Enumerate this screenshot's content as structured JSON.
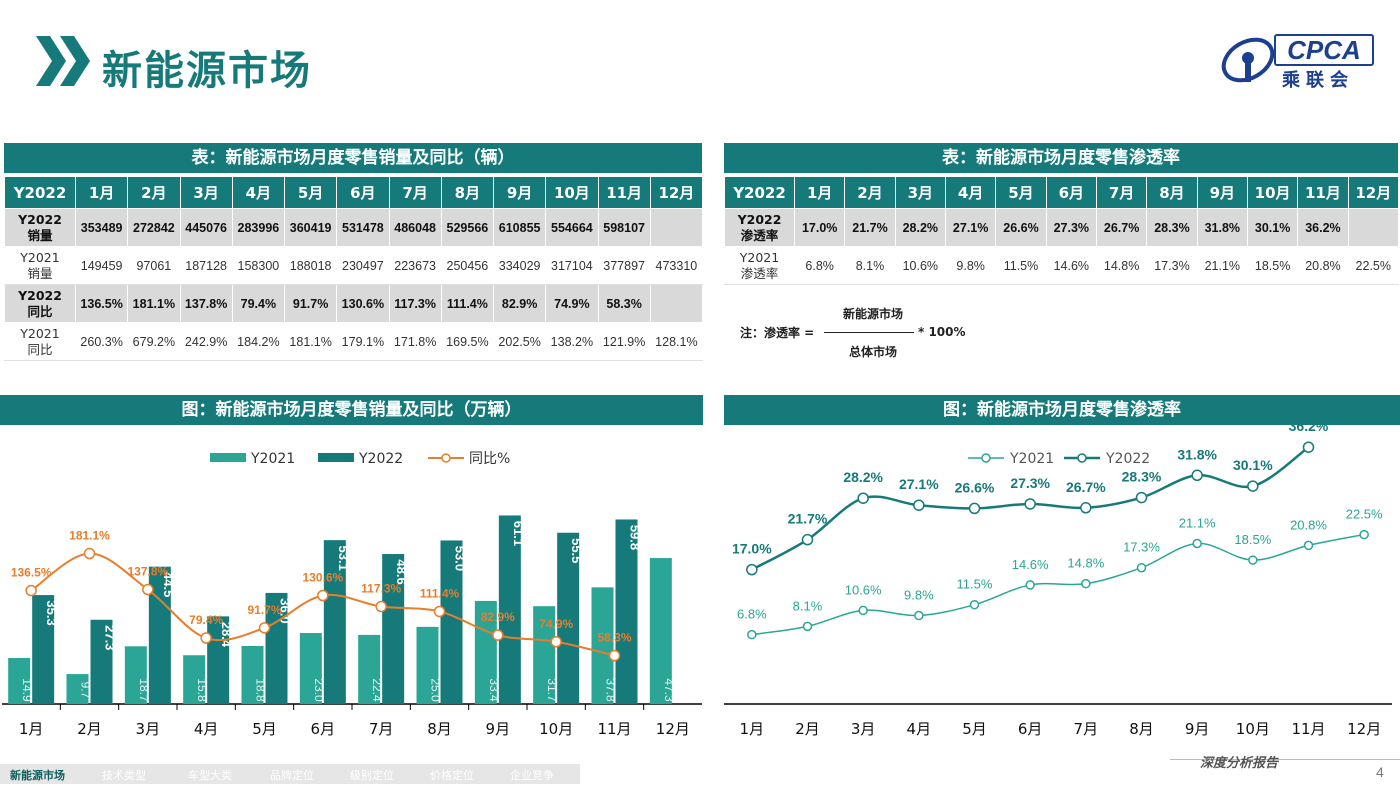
{
  "page_title": "新能源市场",
  "logo": {
    "text": "CPCA",
    "sub": "乘联会"
  },
  "table1": {
    "title": "表：新能源市场月度零售销量及同比（辆）",
    "year_label": "Y2022",
    "months": [
      "1月",
      "2月",
      "3月",
      "4月",
      "5月",
      "6月",
      "7月",
      "8月",
      "9月",
      "10月",
      "11月",
      "12月"
    ],
    "rows": [
      {
        "label_1": "Y2022",
        "label_2": "销量",
        "values": [
          "353489",
          "272842",
          "445076",
          "283996",
          "360419",
          "531478",
          "486048",
          "529566",
          "610855",
          "554664",
          "598107",
          ""
        ]
      },
      {
        "label_1": "Y2021",
        "label_2": "销量",
        "values": [
          "149459",
          "97061",
          "187128",
          "158300",
          "188018",
          "230497",
          "223673",
          "250456",
          "334029",
          "317104",
          "377897",
          "473310"
        ]
      },
      {
        "label_1": "Y2022",
        "label_2": "同比",
        "values": [
          "136.5%",
          "181.1%",
          "137.8%",
          "79.4%",
          "91.7%",
          "130.6%",
          "117.3%",
          "111.4%",
          "82.9%",
          "74.9%",
          "58.3%",
          ""
        ]
      },
      {
        "label_1": "Y2021",
        "label_2": "同比",
        "values": [
          "260.3%",
          "679.2%",
          "242.9%",
          "184.2%",
          "181.1%",
          "179.1%",
          "171.8%",
          "169.5%",
          "202.5%",
          "138.2%",
          "121.9%",
          "128.1%"
        ]
      }
    ]
  },
  "table2": {
    "title": "表：新能源市场月度零售渗透率",
    "year_label": "Y2022",
    "months": [
      "1月",
      "2月",
      "3月",
      "4月",
      "5月",
      "6月",
      "7月",
      "8月",
      "9月",
      "10月",
      "11月",
      "12月"
    ],
    "rows": [
      {
        "label_1": "Y2022",
        "label_2": "渗透率",
        "values": [
          "17.0%",
          "21.7%",
          "28.2%",
          "27.1%",
          "26.6%",
          "27.3%",
          "26.7%",
          "28.3%",
          "31.8%",
          "30.1%",
          "36.2%",
          ""
        ]
      },
      {
        "label_1": "Y2021",
        "label_2": "渗透率",
        "values": [
          "6.8%",
          "8.1%",
          "10.6%",
          "9.8%",
          "11.5%",
          "14.6%",
          "14.8%",
          "17.3%",
          "21.1%",
          "18.5%",
          "20.8%",
          "22.5%"
        ]
      }
    ]
  },
  "formula": {
    "label": "注：渗透率 =",
    "numerator": "新能源市场",
    "denominator": "总体市场",
    "multiplier": "* 100%"
  },
  "chart_data": [
    {
      "type": "bar",
      "title": "图：新能源市场月度零售销量及同比（万辆）",
      "categories": [
        "1月",
        "2月",
        "3月",
        "4月",
        "5月",
        "6月",
        "7月",
        "8月",
        "9月",
        "10月",
        "11月",
        "12月"
      ],
      "series": [
        {
          "name": "Y2021",
          "type": "bar",
          "color": "#2ba596",
          "values": [
            14.9,
            9.7,
            18.7,
            15.8,
            18.8,
            23.0,
            22.4,
            25.0,
            33.4,
            31.7,
            37.8,
            47.3
          ],
          "labels": [
            "14.9",
            "9.7",
            "18.7",
            "15.8",
            "18.8",
            "23.0",
            "22.4",
            "25.0",
            "33.4",
            "31.7",
            "37.8",
            "47.3"
          ]
        },
        {
          "name": "Y2022",
          "type": "bar",
          "color": "#177a7a",
          "values": [
            35.3,
            27.3,
            44.5,
            28.4,
            36.0,
            53.1,
            48.6,
            53.0,
            61.1,
            55.5,
            59.8,
            null
          ],
          "labels": [
            "35.3",
            "27.3",
            "44.5",
            "28.4",
            "36.0",
            "53.1",
            "48.6",
            "53.0",
            "61.1",
            "55.5",
            "59.8",
            ""
          ]
        },
        {
          "name": "同比%",
          "type": "line",
          "color": "#e87d2c",
          "values": [
            136.5,
            181.1,
            137.8,
            79.4,
            91.7,
            130.6,
            117.3,
            111.4,
            82.9,
            74.9,
            58.3,
            null
          ],
          "labels": [
            "136.5%",
            "181.1%",
            "137.8%",
            "79.4%",
            "91.7%",
            "130.6%",
            "117.3%",
            "111.4%",
            "82.9%",
            "74.9%",
            "58.3%",
            ""
          ]
        }
      ],
      "ylim_bar": [
        0,
        70
      ],
      "ylim_line": [
        0,
        260
      ],
      "legend": "top-center"
    },
    {
      "type": "line",
      "title": "图：新能源市场月度零售渗透率",
      "categories": [
        "1月",
        "2月",
        "3月",
        "4月",
        "5月",
        "6月",
        "7月",
        "8月",
        "9月",
        "10月",
        "11月",
        "12月"
      ],
      "series": [
        {
          "name": "Y2021",
          "color": "#2ba596",
          "values": [
            6.8,
            8.1,
            10.6,
            9.8,
            11.5,
            14.6,
            14.8,
            17.3,
            21.1,
            18.5,
            20.8,
            22.5
          ],
          "labels": [
            "6.8%",
            "8.1%",
            "10.6%",
            "9.8%",
            "11.5%",
            "14.6%",
            "14.8%",
            "17.3%",
            "21.1%",
            "18.5%",
            "20.8%",
            "22.5%"
          ]
        },
        {
          "name": "Y2022",
          "color": "#177a7a",
          "values": [
            17.0,
            21.7,
            28.2,
            27.1,
            26.6,
            27.3,
            26.7,
            28.3,
            31.8,
            30.1,
            36.2,
            null
          ],
          "labels": [
            "17.0%",
            "21.7%",
            "28.2%",
            "27.1%",
            "26.6%",
            "27.3%",
            "26.7%",
            "28.3%",
            "31.8%",
            "30.1%",
            "36.2%",
            ""
          ]
        }
      ],
      "ylim": [
        0,
        40
      ],
      "legend": "top-center"
    }
  ],
  "footer": {
    "nav": [
      "新能源市场",
      "技术类型",
      "车型大类",
      "品牌定位",
      "级别定位",
      "价格定位",
      "企业竞争"
    ],
    "report_tag": "深度分析报告",
    "page_number": "4"
  }
}
